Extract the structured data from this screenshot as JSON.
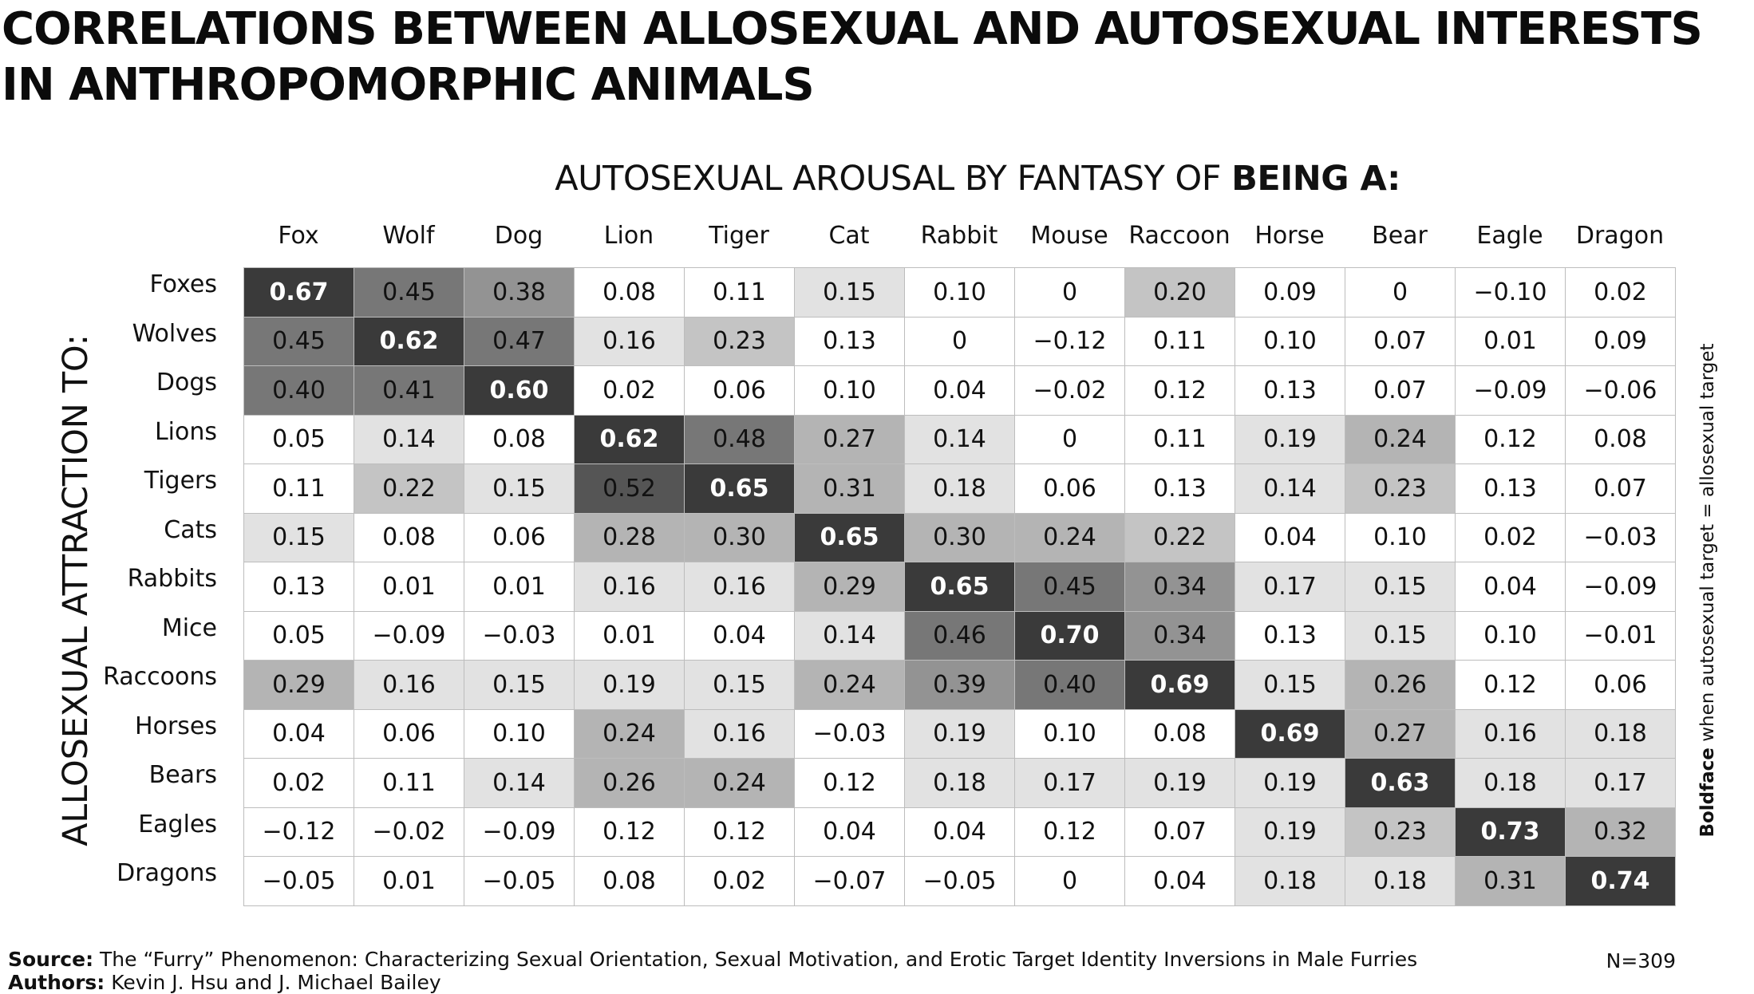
{
  "title": {
    "line1": "CORRELATIONS BETWEEN ALLOSEXUAL AND AUTOSEXUAL INTERESTS",
    "line2": "IN ANTHROPOMORPHIC ANIMALS"
  },
  "subtitle": {
    "prefix": "AUTOSEXUAL AROUSAL BY FANTASY OF ",
    "bold": "BEING A:"
  },
  "left_axis_label": "ALLOSEXUAL ATTRACTION TO:",
  "right_note": {
    "bold": "Boldface",
    "rest": " when autosexual target = allosexual target"
  },
  "source": {
    "label": "Source:",
    "text": " The “Furry” Phenomenon: Characterizing Sexual Orientation, Sexual Motivation, and Erotic Target Identity Inversions in Male Furries"
  },
  "authors": {
    "label": "Authors:",
    "text": " Kevin J. Hsu and J. Michael Bailey"
  },
  "sample_size": "N=309",
  "colors": {
    "text_dark": "#111111",
    "text_light": "#ffffff",
    "grid_line": "#bdbdbd"
  },
  "chart_data": {
    "type": "heatmap",
    "title": "Correlations between allosexual and autosexual interests in anthropomorphic animals",
    "xlabel": "Autosexual arousal by fantasy of being a:",
    "ylabel": "Allosexual attraction to:",
    "columns": [
      "Fox",
      "Wolf",
      "Dog",
      "Lion",
      "Tiger",
      "Cat",
      "Rabbit",
      "Mouse",
      "Raccoon",
      "Horse",
      "Bear",
      "Eagle",
      "Dragon"
    ],
    "rows": [
      "Foxes",
      "Wolves",
      "Dogs",
      "Lions",
      "Tigers",
      "Cats",
      "Rabbits",
      "Mice",
      "Raccoons",
      "Horses",
      "Bears",
      "Eagles",
      "Dragons"
    ],
    "labels": [
      [
        "0.67",
        "0.45",
        "0.38",
        "0.08",
        "0.11",
        "0.15",
        "0.10",
        "0",
        "0.20",
        "0.09",
        "0",
        "-0.10",
        "0.02"
      ],
      [
        "0.45",
        "0.62",
        "0.47",
        "0.16",
        "0.23",
        "0.13",
        "0",
        "-0.12",
        "0.11",
        "0.10",
        "0.07",
        "0.01",
        "0.09"
      ],
      [
        "0.40",
        "0.41",
        "0.60",
        "0.02",
        "0.06",
        "0.10",
        "0.04",
        "-0.02",
        "0.12",
        "0.13",
        "0.07",
        "-0.09",
        "-0.06"
      ],
      [
        "0.05",
        "0.14",
        "0.08",
        "0.62",
        "0.48",
        "0.27",
        "0.14",
        "0",
        "0.11",
        "0.19",
        "0.24",
        "0.12",
        "0.08"
      ],
      [
        "0.11",
        "0.22",
        "0.15",
        "0.52",
        "0.65",
        "0.31",
        "0.18",
        "0.06",
        "0.13",
        "0.14",
        "0.23",
        "0.13",
        "0.07"
      ],
      [
        "0.15",
        "0.08",
        "0.06",
        "0.28",
        "0.30",
        "0.65",
        "0.30",
        "0.24",
        "0.22",
        "0.04",
        "0.10",
        "0.02",
        "-0.03"
      ],
      [
        "0.13",
        "0.01",
        "0.01",
        "0.16",
        "0.16",
        "0.29",
        "0.65",
        "0.45",
        "0.34",
        "0.17",
        "0.15",
        "0.04",
        "-0.09"
      ],
      [
        "0.05",
        "-0.09",
        "-0.03",
        "0.01",
        "0.04",
        "0.14",
        "0.46",
        "0.70",
        "0.34",
        "0.13",
        "0.15",
        "0.10",
        "-0.01"
      ],
      [
        "0.29",
        "0.16",
        "0.15",
        "0.19",
        "0.15",
        "0.24",
        "0.39",
        "0.40",
        "0.69",
        "0.15",
        "0.26",
        "0.12",
        "0.06"
      ],
      [
        "0.04",
        "0.06",
        "0.10",
        "0.24",
        "0.16",
        "-0.03",
        "0.19",
        "0.10",
        "0.08",
        "0.69",
        "0.27",
        "0.16",
        "0.18"
      ],
      [
        "0.02",
        "0.11",
        "0.14",
        "0.26",
        "0.24",
        "0.12",
        "0.18",
        "0.17",
        "0.19",
        "0.19",
        "0.63",
        "0.18",
        "0.17"
      ],
      [
        "-0.12",
        "-0.02",
        "-0.09",
        "0.12",
        "0.12",
        "0.04",
        "0.04",
        "0.12",
        "0.07",
        "0.19",
        "0.23",
        "0.73",
        "0.32"
      ],
      [
        "-0.05",
        "0.01",
        "-0.05",
        "0.08",
        "0.02",
        "-0.07",
        "-0.05",
        "0",
        "0.04",
        "0.18",
        "0.18",
        "0.31",
        "0.74"
      ]
    ],
    "highlight_rule": "diagonal (autosexual target = allosexual target) shown in boldface"
  }
}
